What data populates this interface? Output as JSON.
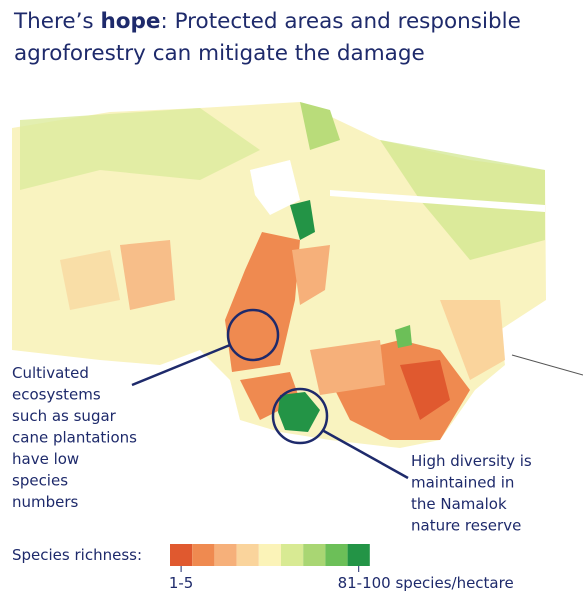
{
  "title": {
    "parts": [
      "There’s ",
      "hope",
      ": Protected areas and responsible agroforestry can mitigate the damage"
    ]
  },
  "annotations": [
    {
      "lines": [
        "Cultivated",
        "ecosystems",
        "such as sugar",
        "cane plantations",
        "have low",
        "species",
        "numbers"
      ]
    },
    {
      "lines": [
        "High diversity is",
        "maintained in",
        "the Namalok",
        "nature reserve"
      ]
    }
  ],
  "legend": {
    "label": "Species richness:",
    "min_label": "1-5",
    "max_label": "81-100 species/hectare",
    "colors": [
      "#e0592f",
      "#ef8a50",
      "#f6b07a",
      "#fad49c",
      "#fbf3b8",
      "#d8ea93",
      "#a9d673",
      "#6cbf58",
      "#239446"
    ]
  }
}
